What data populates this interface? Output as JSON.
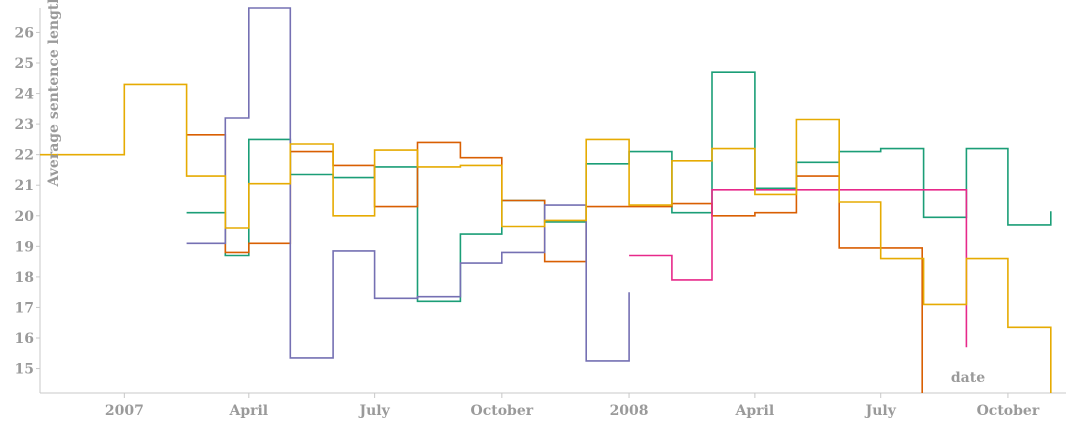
{
  "chart_data": {
    "type": "line",
    "step": true,
    "title": "",
    "xlabel": "date",
    "ylabel": "Average sentence length",
    "ylim": [
      14.2,
      26.8
    ],
    "xlim": [
      "2006-11-01",
      "2008-11-12"
    ],
    "grid": false,
    "legend": "none",
    "x_ticks": [
      {
        "date": "2007-01-01",
        "label": "2007"
      },
      {
        "date": "2007-04-01",
        "label": "April"
      },
      {
        "date": "2007-07-01",
        "label": "July"
      },
      {
        "date": "2007-10-01",
        "label": "October"
      },
      {
        "date": "2008-01-01",
        "label": "2008"
      },
      {
        "date": "2008-04-01",
        "label": "April"
      },
      {
        "date": "2008-07-01",
        "label": "July"
      },
      {
        "date": "2008-10-01",
        "label": "October"
      }
    ],
    "y_ticks": [
      15,
      16,
      17,
      18,
      19,
      20,
      21,
      22,
      23,
      24,
      25,
      26
    ],
    "series": [
      {
        "color": "#1b9e77",
        "points": [
          [
            "2007-02-15",
            20.1
          ],
          [
            "2007-03-15",
            18.7
          ],
          [
            "2007-04-01",
            22.5
          ],
          [
            "2007-05-01",
            21.35
          ],
          [
            "2007-06-01",
            21.25
          ],
          [
            "2007-07-01",
            21.6
          ],
          [
            "2007-08-01",
            17.2
          ],
          [
            "2007-09-01",
            19.4
          ],
          [
            "2007-10-01",
            20.5
          ],
          [
            "2007-11-01",
            19.8
          ],
          [
            "2007-12-01",
            21.7
          ],
          [
            "2008-01-01",
            22.1
          ],
          [
            "2008-02-01",
            20.1
          ],
          [
            "2008-03-01",
            24.7
          ],
          [
            "2008-04-01",
            20.9
          ],
          [
            "2008-05-01",
            21.75
          ],
          [
            "2008-06-01",
            22.1
          ],
          [
            "2008-07-01",
            22.2
          ],
          [
            "2008-08-01",
            19.95
          ],
          [
            "2008-09-01",
            22.2
          ],
          [
            "2008-10-01",
            19.7
          ],
          [
            "2008-11-01",
            20.15
          ]
        ]
      },
      {
        "color": "#d95f02",
        "points": [
          [
            "2007-02-15",
            22.65
          ],
          [
            "2007-03-15",
            18.8
          ],
          [
            "2007-04-01",
            19.1
          ],
          [
            "2007-05-01",
            22.1
          ],
          [
            "2007-06-01",
            21.65
          ],
          [
            "2007-07-01",
            20.3
          ],
          [
            "2007-08-01",
            22.4
          ],
          [
            "2007-09-01",
            21.9
          ],
          [
            "2007-10-01",
            20.5
          ],
          [
            "2007-11-01",
            18.5
          ],
          [
            "2007-12-01",
            20.3
          ],
          [
            "2008-01-01",
            20.3
          ],
          [
            "2008-02-01",
            20.4
          ],
          [
            "2008-03-01",
            20.0
          ],
          [
            "2008-04-01",
            20.1
          ],
          [
            "2008-05-01",
            21.3
          ],
          [
            "2008-06-01",
            18.95
          ],
          [
            "2008-07-15",
            18.95
          ],
          [
            "2008-07-31",
            14.2
          ]
        ]
      },
      {
        "color": "#7570b3",
        "points": [
          [
            "2007-02-15",
            19.1
          ],
          [
            "2007-03-15",
            23.2
          ],
          [
            "2007-04-01",
            26.8
          ],
          [
            "2007-05-01",
            15.35
          ],
          [
            "2007-06-01",
            18.85
          ],
          [
            "2007-07-01",
            17.3
          ],
          [
            "2007-08-01",
            17.35
          ],
          [
            "2007-09-01",
            18.45
          ],
          [
            "2007-10-01",
            18.8
          ],
          [
            "2007-11-01",
            20.35
          ],
          [
            "2007-12-01",
            15.25
          ],
          [
            "2008-01-01",
            17.5
          ]
        ]
      },
      {
        "color": "#e7298a",
        "points": [
          [
            "2008-01-01",
            18.7
          ],
          [
            "2008-02-01",
            17.9
          ],
          [
            "2008-03-01",
            20.85
          ],
          [
            "2008-09-01",
            15.7
          ]
        ]
      },
      {
        "color": "#e6ab02",
        "points": [
          [
            "2006-11-01",
            22.0
          ],
          [
            "2007-01-01",
            24.3
          ],
          [
            "2007-02-15",
            21.3
          ],
          [
            "2007-03-15",
            19.6
          ],
          [
            "2007-04-01",
            21.05
          ],
          [
            "2007-05-01",
            22.35
          ],
          [
            "2007-06-01",
            20.0
          ],
          [
            "2007-07-01",
            22.15
          ],
          [
            "2007-08-01",
            21.6
          ],
          [
            "2007-09-01",
            21.65
          ],
          [
            "2007-10-01",
            19.65
          ],
          [
            "2007-11-01",
            19.85
          ],
          [
            "2007-12-01",
            22.5
          ],
          [
            "2008-01-01",
            20.35
          ],
          [
            "2008-02-01",
            21.8
          ],
          [
            "2008-03-01",
            22.2
          ],
          [
            "2008-04-01",
            20.7
          ],
          [
            "2008-05-01",
            23.15
          ],
          [
            "2008-06-01",
            20.45
          ],
          [
            "2008-07-01",
            18.6
          ],
          [
            "2008-08-01",
            17.1
          ],
          [
            "2008-09-01",
            18.6
          ],
          [
            "2008-10-01",
            16.35
          ],
          [
            "2008-11-01",
            14.2
          ]
        ]
      }
    ]
  }
}
